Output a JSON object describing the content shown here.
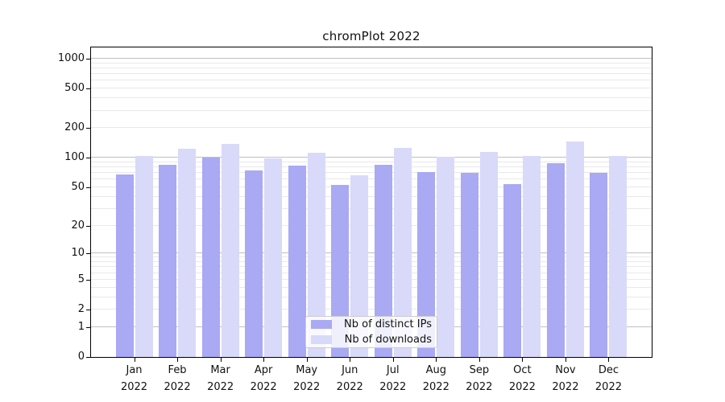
{
  "title": "chromPlot 2022",
  "legend": {
    "items": [
      {
        "label": "Nb of distinct IPs",
        "color": "#a9a9f4"
      },
      {
        "label": "Nb of downloads",
        "color": "#d9d9f9"
      }
    ]
  },
  "chart_data": {
    "type": "bar",
    "title": "chromPlot 2022",
    "categories": [
      "Jan 2022",
      "Feb 2022",
      "Mar 2022",
      "Apr 2022",
      "May 2022",
      "Jun 2022",
      "Jul 2022",
      "Aug 2022",
      "Sep 2022",
      "Oct 2022",
      "Nov 2022",
      "Dec 2022"
    ],
    "month_labels": [
      "Jan",
      "Feb",
      "Mar",
      "Apr",
      "May",
      "Jun",
      "Jul",
      "Aug",
      "Sep",
      "Oct",
      "Nov",
      "Dec"
    ],
    "year_label": "2022",
    "series": [
      {
        "name": "Nb of distinct IPs",
        "color": "#a9a9f4",
        "values": [
          68,
          84,
          100,
          74,
          83,
          53,
          84,
          71,
          70,
          54,
          88,
          70
        ]
      },
      {
        "name": "Nb of downloads",
        "color": "#d9d9f9",
        "values": [
          104,
          123,
          139,
          99,
          113,
          66,
          127,
          102,
          115,
          105,
          147,
          105
        ]
      }
    ],
    "yscale": "log1p",
    "ylabel": "",
    "xlabel": "",
    "y_tick_values": [
      0,
      1,
      2,
      5,
      10,
      20,
      50,
      100,
      200,
      500,
      1000
    ],
    "y_tick_labels": [
      "0",
      "1",
      "2",
      "5",
      "10",
      "20",
      "50",
      "100",
      "200",
      "500",
      "1000"
    ],
    "ylim": [
      0,
      1300
    ],
    "grid": true,
    "legend_position": "lower center",
    "colors": {
      "major_grid": "#c0c0c0",
      "minor_grid": "#e9e9e9",
      "axis": "#000000",
      "background": "#ffffff"
    }
  }
}
